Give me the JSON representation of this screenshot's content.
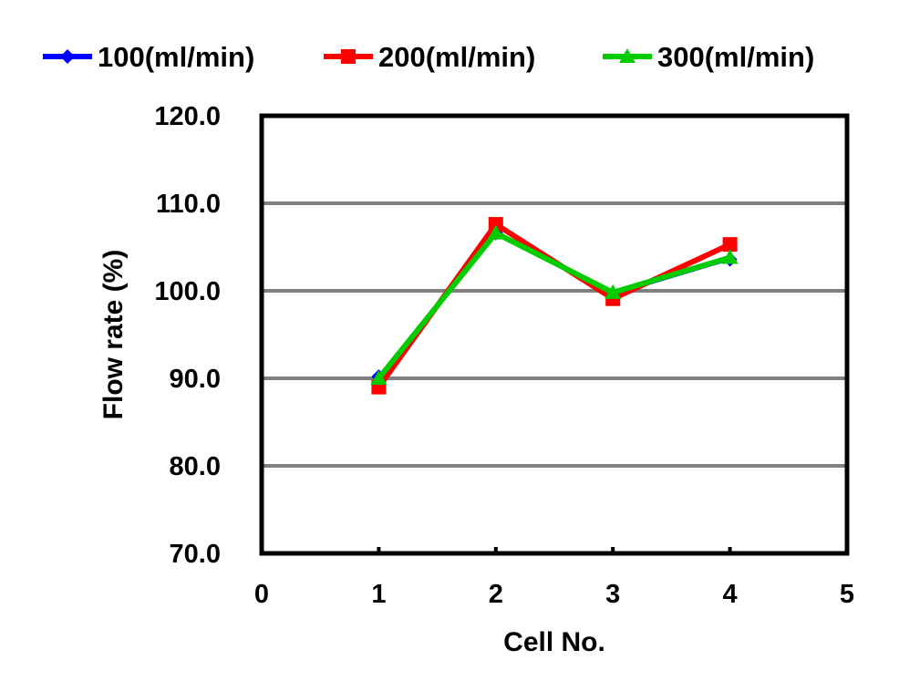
{
  "chart_data": {
    "type": "line",
    "xlabel": "Cell No.",
    "ylabel": "Flow rate (%)",
    "xlim": [
      0,
      5
    ],
    "ylim": [
      70,
      120
    ],
    "x_ticks": [
      "0",
      "1",
      "2",
      "3",
      "4",
      "5"
    ],
    "y_ticks": [
      "120.0",
      "110.0",
      "100.0",
      "90.0",
      "80.0",
      "70.0"
    ],
    "grid": true,
    "legend_position": "top",
    "x": [
      1,
      2,
      3,
      4
    ],
    "series": [
      {
        "name": "100(ml/min)",
        "color": "#0000ff",
        "marker": "diamond",
        "values": [
          90.2,
          106.6,
          99.6,
          103.6
        ]
      },
      {
        "name": "200(ml/min)",
        "color": "#ff0000",
        "marker": "square",
        "values": [
          89.0,
          107.6,
          99.1,
          105.3
        ]
      },
      {
        "name": "300(ml/min)",
        "color": "#00cc00",
        "marker": "triangle",
        "values": [
          90.0,
          106.6,
          99.8,
          103.8
        ]
      }
    ]
  }
}
